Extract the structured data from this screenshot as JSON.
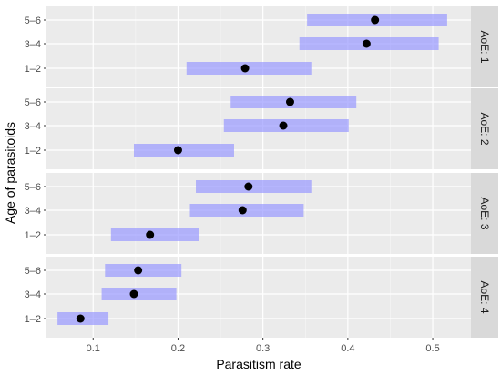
{
  "chart_data": {
    "type": "scatter",
    "title": "",
    "xlabel": "Parasitism rate",
    "ylabel": "Age of parasitoids",
    "xlim": [
      0.045,
      0.545
    ],
    "x_ticks": [
      0.1,
      0.2,
      0.3,
      0.4,
      0.5
    ],
    "x_tick_labels": [
      "0.1",
      "0.2",
      "0.3",
      "0.4",
      "0.5"
    ],
    "categories": [
      "5–6",
      "3–4",
      "1–2"
    ],
    "grid": true,
    "facet_label_prefix": "AoE: ",
    "facets": [
      {
        "label": "AoE: 1",
        "points": [
          {
            "age": "5–6",
            "estimate": 0.432,
            "lower": 0.352,
            "upper": 0.517
          },
          {
            "age": "3–4",
            "estimate": 0.422,
            "lower": 0.343,
            "upper": 0.507
          },
          {
            "age": "1–2",
            "estimate": 0.279,
            "lower": 0.21,
            "upper": 0.357
          }
        ]
      },
      {
        "label": "AoE: 2",
        "points": [
          {
            "age": "5–6",
            "estimate": 0.332,
            "lower": 0.262,
            "upper": 0.41
          },
          {
            "age": "3–4",
            "estimate": 0.324,
            "lower": 0.254,
            "upper": 0.401
          },
          {
            "age": "1–2",
            "estimate": 0.2,
            "lower": 0.148,
            "upper": 0.266
          }
        ]
      },
      {
        "label": "AoE: 3",
        "points": [
          {
            "age": "5–6",
            "estimate": 0.283,
            "lower": 0.221,
            "upper": 0.357
          },
          {
            "age": "3–4",
            "estimate": 0.276,
            "lower": 0.214,
            "upper": 0.348
          },
          {
            "age": "1–2",
            "estimate": 0.167,
            "lower": 0.121,
            "upper": 0.225
          }
        ]
      },
      {
        "label": "AoE: 4",
        "points": [
          {
            "age": "5–6",
            "estimate": 0.153,
            "lower": 0.114,
            "upper": 0.204
          },
          {
            "age": "3–4",
            "estimate": 0.148,
            "lower": 0.11,
            "upper": 0.198
          },
          {
            "age": "1–2",
            "estimate": 0.085,
            "lower": 0.058,
            "upper": 0.118
          }
        ]
      }
    ]
  },
  "colors": {
    "panel_background": "#ebebeb",
    "grid_major": "#ffffff",
    "strip_background": "#d9d9d9",
    "interval": "#9999ff",
    "point": "#000000",
    "tick_text": "#4d4d4d"
  }
}
